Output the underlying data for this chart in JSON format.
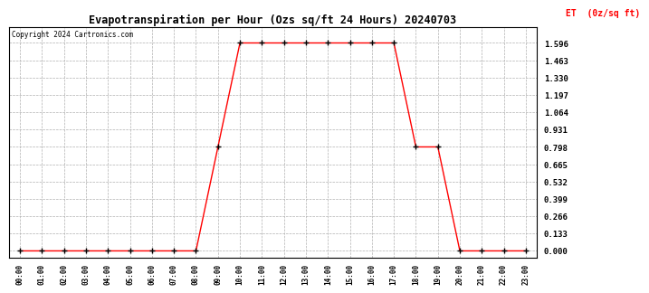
{
  "title": "Evapotranspiration per Hour (Ozs sq/ft 24 Hours) 20240703",
  "copyright": "Copyright 2024 Cartronics.com",
  "ylabel": "ET  (0z/sq ft)",
  "ylabel_color": "#ff0000",
  "copyright_color": "#000000",
  "background_color": "#ffffff",
  "line_color": "#ff0000",
  "marker_color": "#000000",
  "grid_color": "#b0b0b0",
  "hours": [
    0,
    1,
    2,
    3,
    4,
    5,
    6,
    7,
    8,
    9,
    10,
    11,
    12,
    13,
    14,
    15,
    16,
    17,
    18,
    19,
    20,
    21,
    22,
    23
  ],
  "values": [
    0.0,
    0.0,
    0.0,
    0.0,
    0.0,
    0.0,
    0.0,
    0.0,
    0.0,
    0.798,
    1.596,
    1.596,
    1.596,
    1.596,
    1.596,
    1.596,
    1.596,
    1.596,
    0.798,
    0.798,
    0.0,
    0.0,
    0.0,
    0.0
  ],
  "yticks": [
    0.0,
    0.133,
    0.266,
    0.399,
    0.532,
    0.665,
    0.798,
    0.931,
    1.064,
    1.197,
    1.33,
    1.463,
    1.596
  ],
  "ylim": [
    -0.05,
    1.72
  ],
  "xlim": [
    -0.5,
    23.5
  ],
  "tick_labels": [
    "00:00",
    "01:00",
    "02:00",
    "03:00",
    "04:00",
    "05:00",
    "06:00",
    "07:00",
    "08:00",
    "09:00",
    "10:00",
    "11:00",
    "12:00",
    "13:00",
    "14:00",
    "15:00",
    "16:00",
    "17:00",
    "18:00",
    "19:00",
    "20:00",
    "21:00",
    "22:00",
    "23:00"
  ]
}
